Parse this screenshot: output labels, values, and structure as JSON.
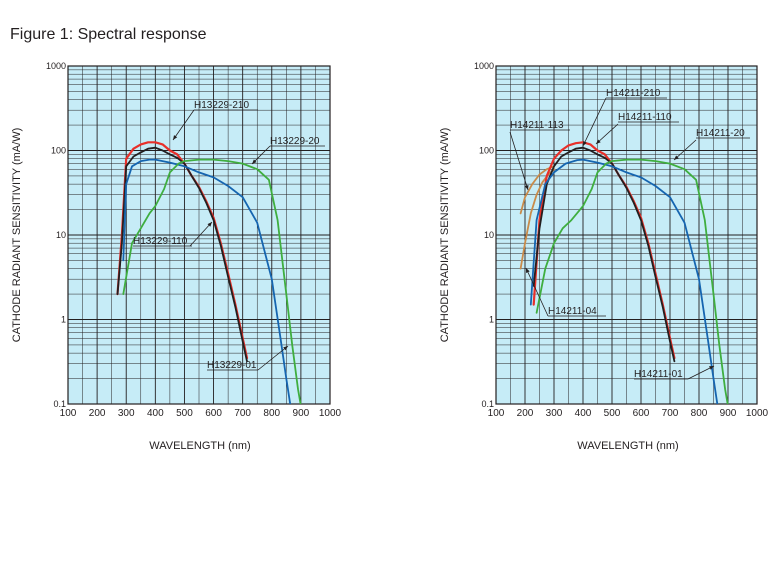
{
  "figure_title": "Figure 1: Spectral response",
  "chart_data": [
    {
      "type": "line",
      "xlabel": "WAVELENGTH (nm)",
      "ylabel": "CATHODE RADIANT SENSITIVITY (mA/W)",
      "xlim": [
        100,
        1000
      ],
      "ylim": [
        0.1,
        1000
      ],
      "y_scale": "log",
      "x_ticks": [
        "100",
        "200",
        "300",
        "400",
        "500",
        "600",
        "700",
        "800",
        "900",
        "1000"
      ],
      "y_ticks": [
        "0.1",
        "1",
        "10",
        "100",
        "1000"
      ],
      "grid": true,
      "series": [
        {
          "name": "H13229-210",
          "color": "#e8302a",
          "x": [
            270,
            285,
            300,
            325,
            350,
            375,
            400,
            425,
            450,
            475,
            500,
            525,
            550,
            575,
            600,
            625,
            650,
            675,
            700,
            715
          ],
          "y": [
            2,
            10,
            80,
            105,
            118,
            125,
            125,
            118,
            100,
            90,
            70,
            50,
            37,
            25,
            16,
            8,
            3.5,
            1.5,
            0.6,
            0.35
          ]
        },
        {
          "name": "H13229-110",
          "color": "#231f20",
          "x": [
            270,
            285,
            300,
            325,
            350,
            375,
            400,
            425,
            450,
            475,
            500,
            525,
            550,
            575,
            600,
            625,
            650,
            675,
            700,
            715
          ],
          "y": [
            2,
            8,
            65,
            85,
            95,
            105,
            108,
            100,
            90,
            82,
            70,
            50,
            36,
            24,
            15,
            7.5,
            3.2,
            1.4,
            0.55,
            0.32
          ]
        },
        {
          "name": "H13229-01",
          "color": "#1565b0",
          "x": [
            290,
            300,
            320,
            350,
            380,
            400,
            450,
            500,
            550,
            600,
            650,
            700,
            750,
            800,
            830,
            850,
            870
          ],
          "y": [
            5,
            40,
            65,
            75,
            78,
            78,
            72,
            65,
            55,
            48,
            38,
            28,
            14,
            3,
            0.6,
            0.2,
            0.07
          ]
        },
        {
          "name": "H13229-20",
          "color": "#3fae3f",
          "x": [
            290,
            320,
            350,
            380,
            400,
            430,
            450,
            480,
            500,
            550,
            600,
            650,
            700,
            750,
            790,
            820,
            850,
            870,
            890,
            910
          ],
          "y": [
            2,
            8,
            12,
            18,
            22,
            35,
            55,
            70,
            75,
            78,
            78,
            75,
            70,
            60,
            45,
            15,
            2,
            0.5,
            0.15,
            0.06
          ]
        }
      ],
      "annotations": [
        "H13229-210",
        "H13229-20",
        "H13229-110",
        "H13229-01"
      ]
    },
    {
      "type": "line",
      "xlabel": "WAVELENGTH (nm)",
      "ylabel": "CATHODE RADIANT SENSITIVITY (mA/W)",
      "xlim": [
        100,
        1000
      ],
      "ylim": [
        0.1,
        1000
      ],
      "y_scale": "log",
      "x_ticks": [
        "100",
        "200",
        "300",
        "400",
        "500",
        "600",
        "700",
        "800",
        "900",
        "1000"
      ],
      "y_ticks": [
        "0.1",
        "1",
        "10",
        "100",
        "1000"
      ],
      "grid": true,
      "series": [
        {
          "name": "H14211-113",
          "color": "#c98b4a",
          "x": [
            185,
            200,
            225,
            250,
            275,
            300
          ],
          "y": [
            18,
            28,
            40,
            52,
            60,
            65
          ]
        },
        {
          "name": "H14211-04",
          "color": "#c98b4a",
          "x": [
            185,
            200,
            220,
            240,
            260,
            280,
            300
          ],
          "y": [
            4,
            8,
            18,
            30,
            42,
            52,
            60
          ]
        },
        {
          "name": "H14211-210",
          "color": "#e8302a",
          "x": [
            230,
            250,
            275,
            300,
            325,
            350,
            375,
            400,
            425,
            450,
            475,
            500,
            525,
            550,
            575,
            600,
            625,
            650,
            675,
            700,
            715
          ],
          "y": [
            1.5,
            15,
            50,
            80,
            100,
            115,
            122,
            125,
            118,
            100,
            90,
            70,
            50,
            37,
            25,
            16,
            8,
            3.5,
            1.5,
            0.6,
            0.35
          ]
        },
        {
          "name": "H14211-110",
          "color": "#231f20",
          "x": [
            230,
            250,
            275,
            300,
            325,
            350,
            375,
            400,
            425,
            450,
            475,
            500,
            525,
            550,
            575,
            600,
            625,
            650,
            675,
            700,
            715
          ],
          "y": [
            2.5,
            12,
            40,
            65,
            85,
            95,
            105,
            108,
            100,
            90,
            82,
            70,
            50,
            36,
            24,
            15,
            7.5,
            3.2,
            1.4,
            0.55,
            0.32
          ]
        },
        {
          "name": "H14211-01",
          "color": "#1565b0",
          "x": [
            220,
            240,
            270,
            300,
            340,
            380,
            400,
            450,
            500,
            550,
            600,
            650,
            700,
            750,
            800,
            830,
            850,
            870
          ],
          "y": [
            1.5,
            15,
            40,
            55,
            70,
            77,
            78,
            72,
            65,
            55,
            48,
            38,
            28,
            14,
            3,
            0.6,
            0.2,
            0.07
          ]
        },
        {
          "name": "H14211-20",
          "color": "#3fae3f",
          "x": [
            240,
            270,
            300,
            330,
            360,
            400,
            430,
            450,
            480,
            500,
            550,
            600,
            650,
            700,
            750,
            790,
            820,
            850,
            870,
            890,
            910
          ],
          "y": [
            1.2,
            4,
            8,
            12,
            15,
            22,
            35,
            55,
            70,
            75,
            78,
            78,
            75,
            70,
            60,
            45,
            15,
            2,
            0.5,
            0.15,
            0.06
          ]
        }
      ],
      "annotations": [
        "H14211-210",
        "H14211-113",
        "H14211-110",
        "H14211-20",
        "H14211-04",
        "H14211-01"
      ]
    }
  ]
}
